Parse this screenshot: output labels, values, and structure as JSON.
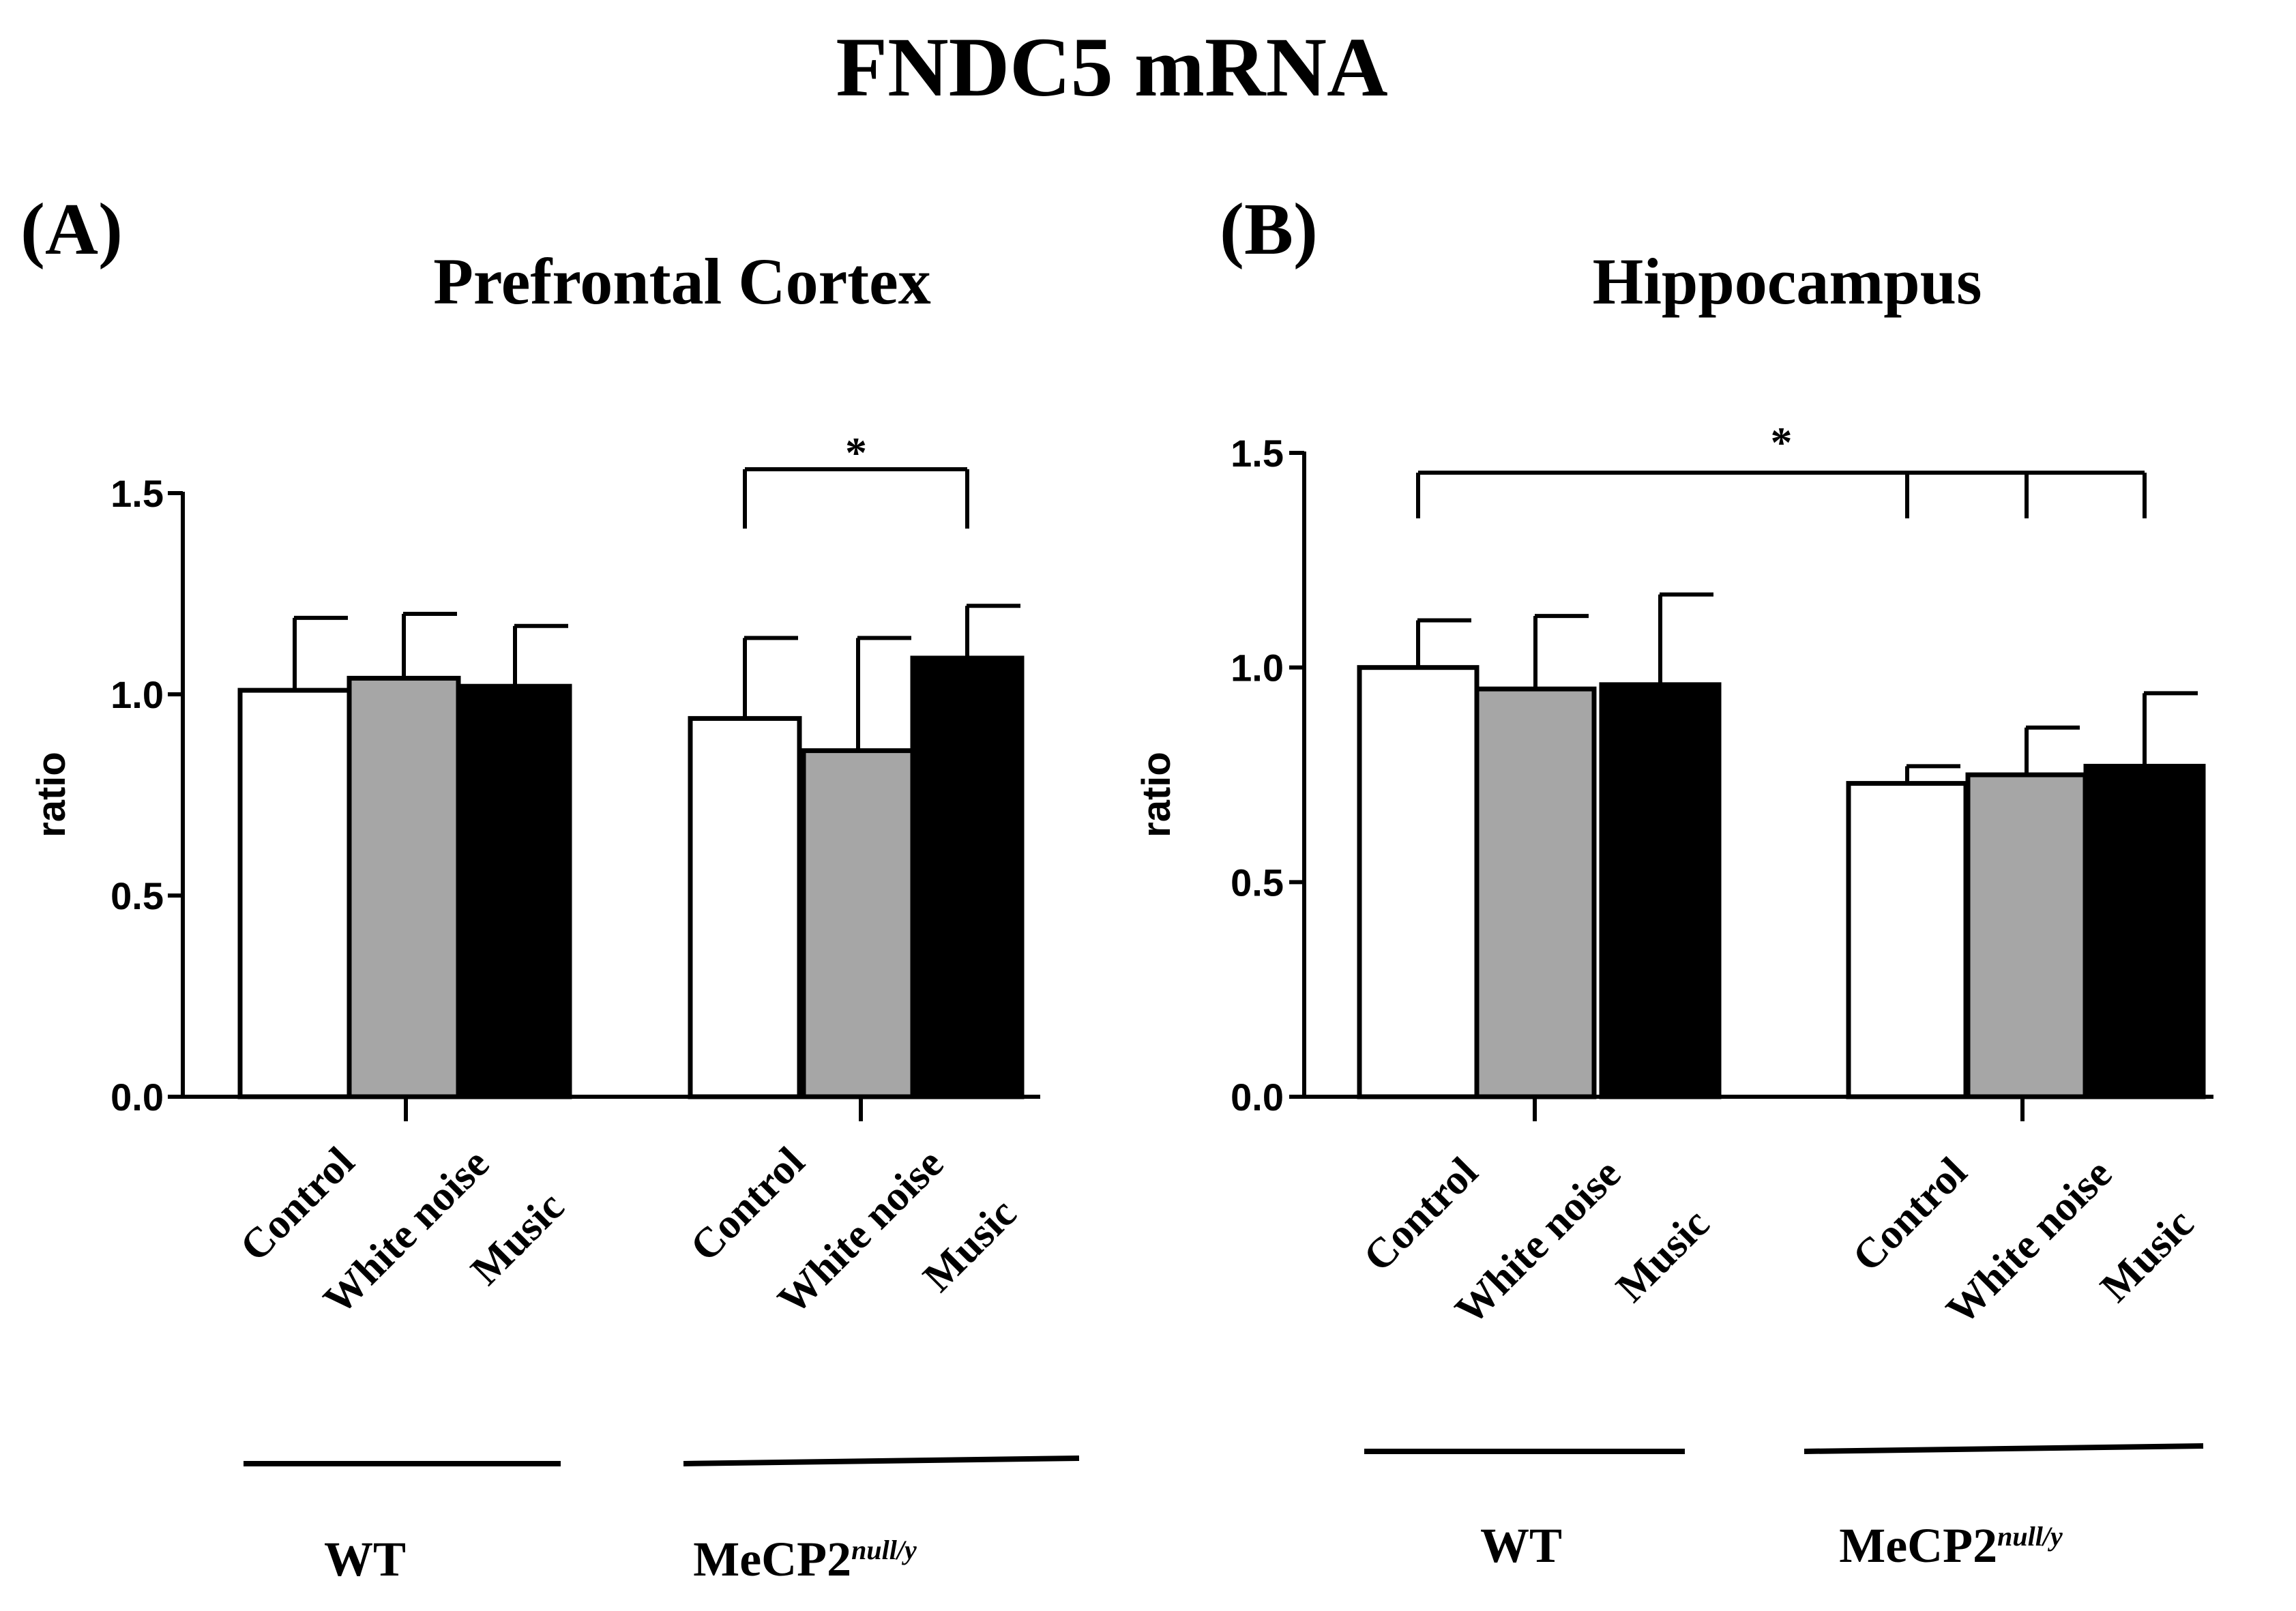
{
  "figure": {
    "title": "FNDC5 mRNA"
  },
  "chart_data": [
    {
      "type": "bar",
      "panel_label": "(A)",
      "title": "Prefrontal Cortex",
      "ylabel": "ratio",
      "ylim": [
        0,
        1.5
      ],
      "yticks": [
        "0.0",
        "0.5",
        "1.0",
        "1.5"
      ],
      "categories": [
        "Control",
        "White noise",
        "Music",
        "Control",
        "White noise",
        "Music"
      ],
      "values": [
        1.01,
        1.04,
        1.02,
        0.94,
        0.86,
        1.09
      ],
      "errors": [
        0.18,
        0.16,
        0.15,
        0.2,
        0.28,
        0.13
      ],
      "fills": [
        "#ffffff",
        "#a6a6a6",
        "#000000",
        "#ffffff",
        "#a6a6a6",
        "#000000"
      ],
      "groups": [
        {
          "name": "WT",
          "superscript": ""
        },
        {
          "name": "MeCP2",
          "superscript": "null/y"
        }
      ],
      "significance": [
        {
          "label": "*",
          "from": 3,
          "to": [
            5
          ]
        }
      ]
    },
    {
      "type": "bar",
      "panel_label": "(B)",
      "title": "Hippocampus",
      "ylabel": "ratio",
      "ylim": [
        0,
        1.5
      ],
      "yticks": [
        "0.0",
        "0.5",
        "1.0",
        "1.5"
      ],
      "categories": [
        "Control",
        "White noise",
        "Music",
        "Control",
        "White noise",
        "Music"
      ],
      "values": [
        1.0,
        0.95,
        0.96,
        0.73,
        0.75,
        0.77
      ],
      "errors": [
        0.11,
        0.17,
        0.21,
        0.04,
        0.11,
        0.17
      ],
      "fills": [
        "#ffffff",
        "#a6a6a6",
        "#000000",
        "#ffffff",
        "#a6a6a6",
        "#000000"
      ],
      "groups": [
        {
          "name": "WT",
          "superscript": ""
        },
        {
          "name": "MeCP2",
          "superscript": "null/y"
        }
      ],
      "significance": [
        {
          "label": "*",
          "from": 0,
          "to": [
            3,
            4,
            5
          ]
        }
      ]
    }
  ]
}
